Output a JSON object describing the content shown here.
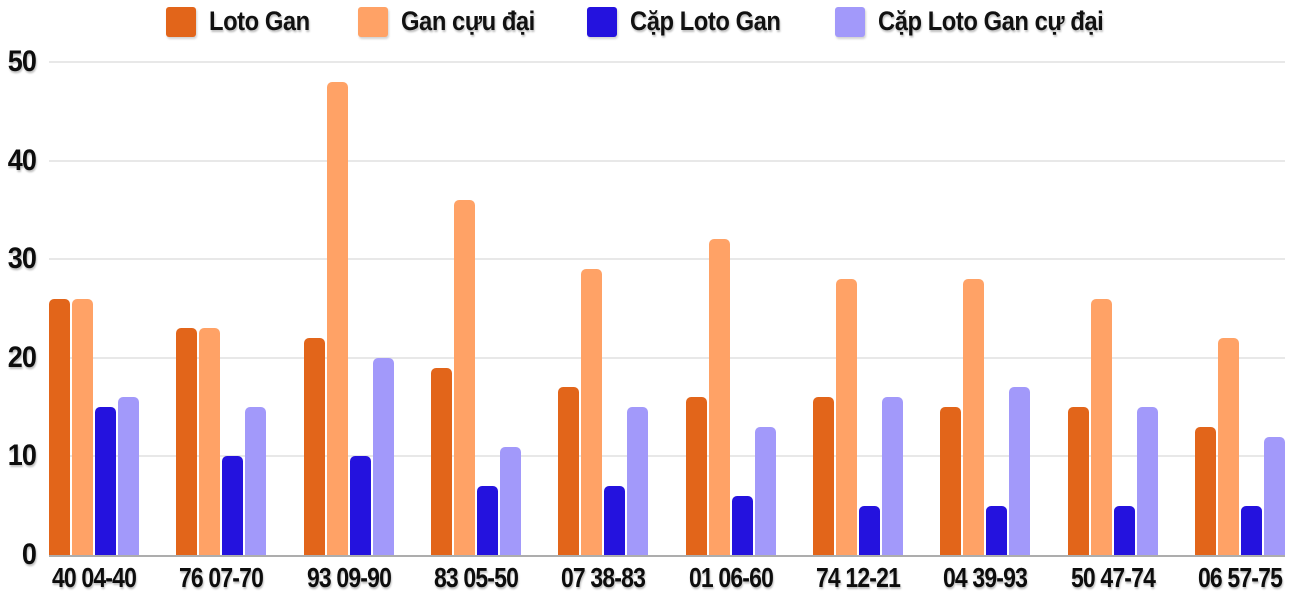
{
  "chart_data": {
    "type": "bar",
    "title": "",
    "xlabel": "",
    "ylabel": "",
    "categories": [
      "40 04-40",
      "76 07-70",
      "93 09-90",
      "83 05-50",
      "07 38-83",
      "01 06-60",
      "74 12-21",
      "04 39-93",
      "50 47-74",
      "06 57-75"
    ],
    "series": [
      {
        "name": "Loto Gan",
        "color": "#E2651A",
        "values": [
          26,
          23,
          22,
          19,
          17,
          16,
          16,
          15,
          15,
          13
        ]
      },
      {
        "name": "Gan cựu đại",
        "color": "#FFA266",
        "values": [
          26,
          23,
          48,
          36,
          29,
          32,
          28,
          28,
          26,
          22
        ]
      },
      {
        "name": "Cặp Loto Gan",
        "color": "#2412DE",
        "values": [
          15,
          10,
          10,
          7,
          7,
          6,
          5,
          5,
          5,
          5
        ]
      },
      {
        "name": "Cặp Loto Gan cự đại",
        "color": "#A299FA",
        "values": [
          16,
          15,
          20,
          11,
          15,
          13,
          16,
          17,
          15,
          12
        ]
      }
    ],
    "ylim": [
      0,
      50
    ],
    "yticks": [
      0,
      10,
      20,
      30,
      40,
      50
    ],
    "grid": true,
    "legend_position": "top",
    "colors": {
      "background": "#FFFFFF",
      "grid_color": "#E8E8E8",
      "axis_line_color": "#ADADAD",
      "text_color": "#111111"
    }
  }
}
